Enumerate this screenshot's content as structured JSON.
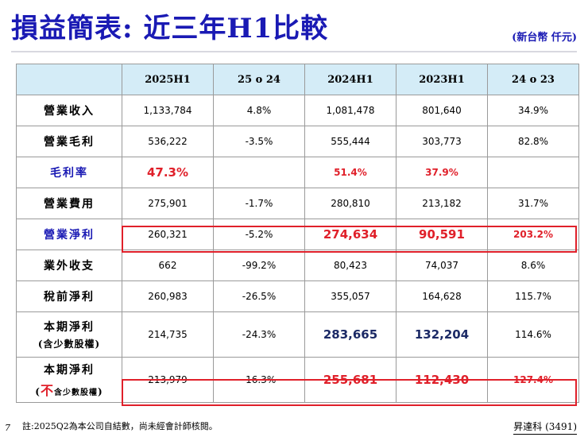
{
  "title": "損益簡表: 近三年H1比較",
  "unit": "(新台幣 仟元)",
  "headers": [
    "2025H1",
    "25 o 24",
    "2024H1",
    "2023H1",
    "24 o 23"
  ],
  "rows": [
    {
      "label": "營業收入",
      "c1": "1,133,784",
      "c2": "4.8%",
      "c3": "1,081,478",
      "c4": "801,640",
      "c5": "34.9%"
    },
    {
      "label": "營業毛利",
      "c1": "536,222",
      "c2": "-3.5%",
      "c3": "555,444",
      "c4": "303,773",
      "c5": "82.8%"
    },
    {
      "label": "毛利率",
      "c1": "47.3%",
      "c2": "",
      "c3": "51.4%",
      "c4": "37.9%",
      "c5": ""
    },
    {
      "label": "營業費用",
      "c1": "275,901",
      "c2": "-1.7%",
      "c3": "280,810",
      "c4": "213,182",
      "c5": "31.7%"
    },
    {
      "label": "營業淨利",
      "c1": "260,321",
      "c2": "-5.2%",
      "c3": "274,634",
      "c4": "90,591",
      "c5": "203.2%"
    },
    {
      "label": "業外收支",
      "c1": "662",
      "c2": "-99.2%",
      "c3": "80,423",
      "c4": "74,037",
      "c5": "8.6%"
    },
    {
      "label": "稅前淨利",
      "c1": "260,983",
      "c2": "-26.5%",
      "c3": "355,057",
      "c4": "164,628",
      "c5": "115.7%"
    },
    {
      "label": "本期淨利",
      "sub": "(含少數股權)",
      "c1": "214,735",
      "c2": "-24.3%",
      "c3": "283,665",
      "c4": "132,204",
      "c5": "114.6%"
    },
    {
      "label": "本期淨利",
      "sub_open": "(",
      "sub_red": "不",
      "sub_rest": "含少數股權",
      "sub_close": ")",
      "c1": "213,979",
      "c2": "-16.3%",
      "c3": "255,681",
      "c4": "112,430",
      "c5": "127.4%"
    }
  ],
  "page_number": "7",
  "note": "註:2025Q2為本公司自結數，尚未經會計師核閱。",
  "company": "昇達科 (3491)",
  "colors": {
    "title_blue": "#1a1ab4",
    "header_bg": "#d4ecf7",
    "highlight_red": "#e0202a"
  }
}
